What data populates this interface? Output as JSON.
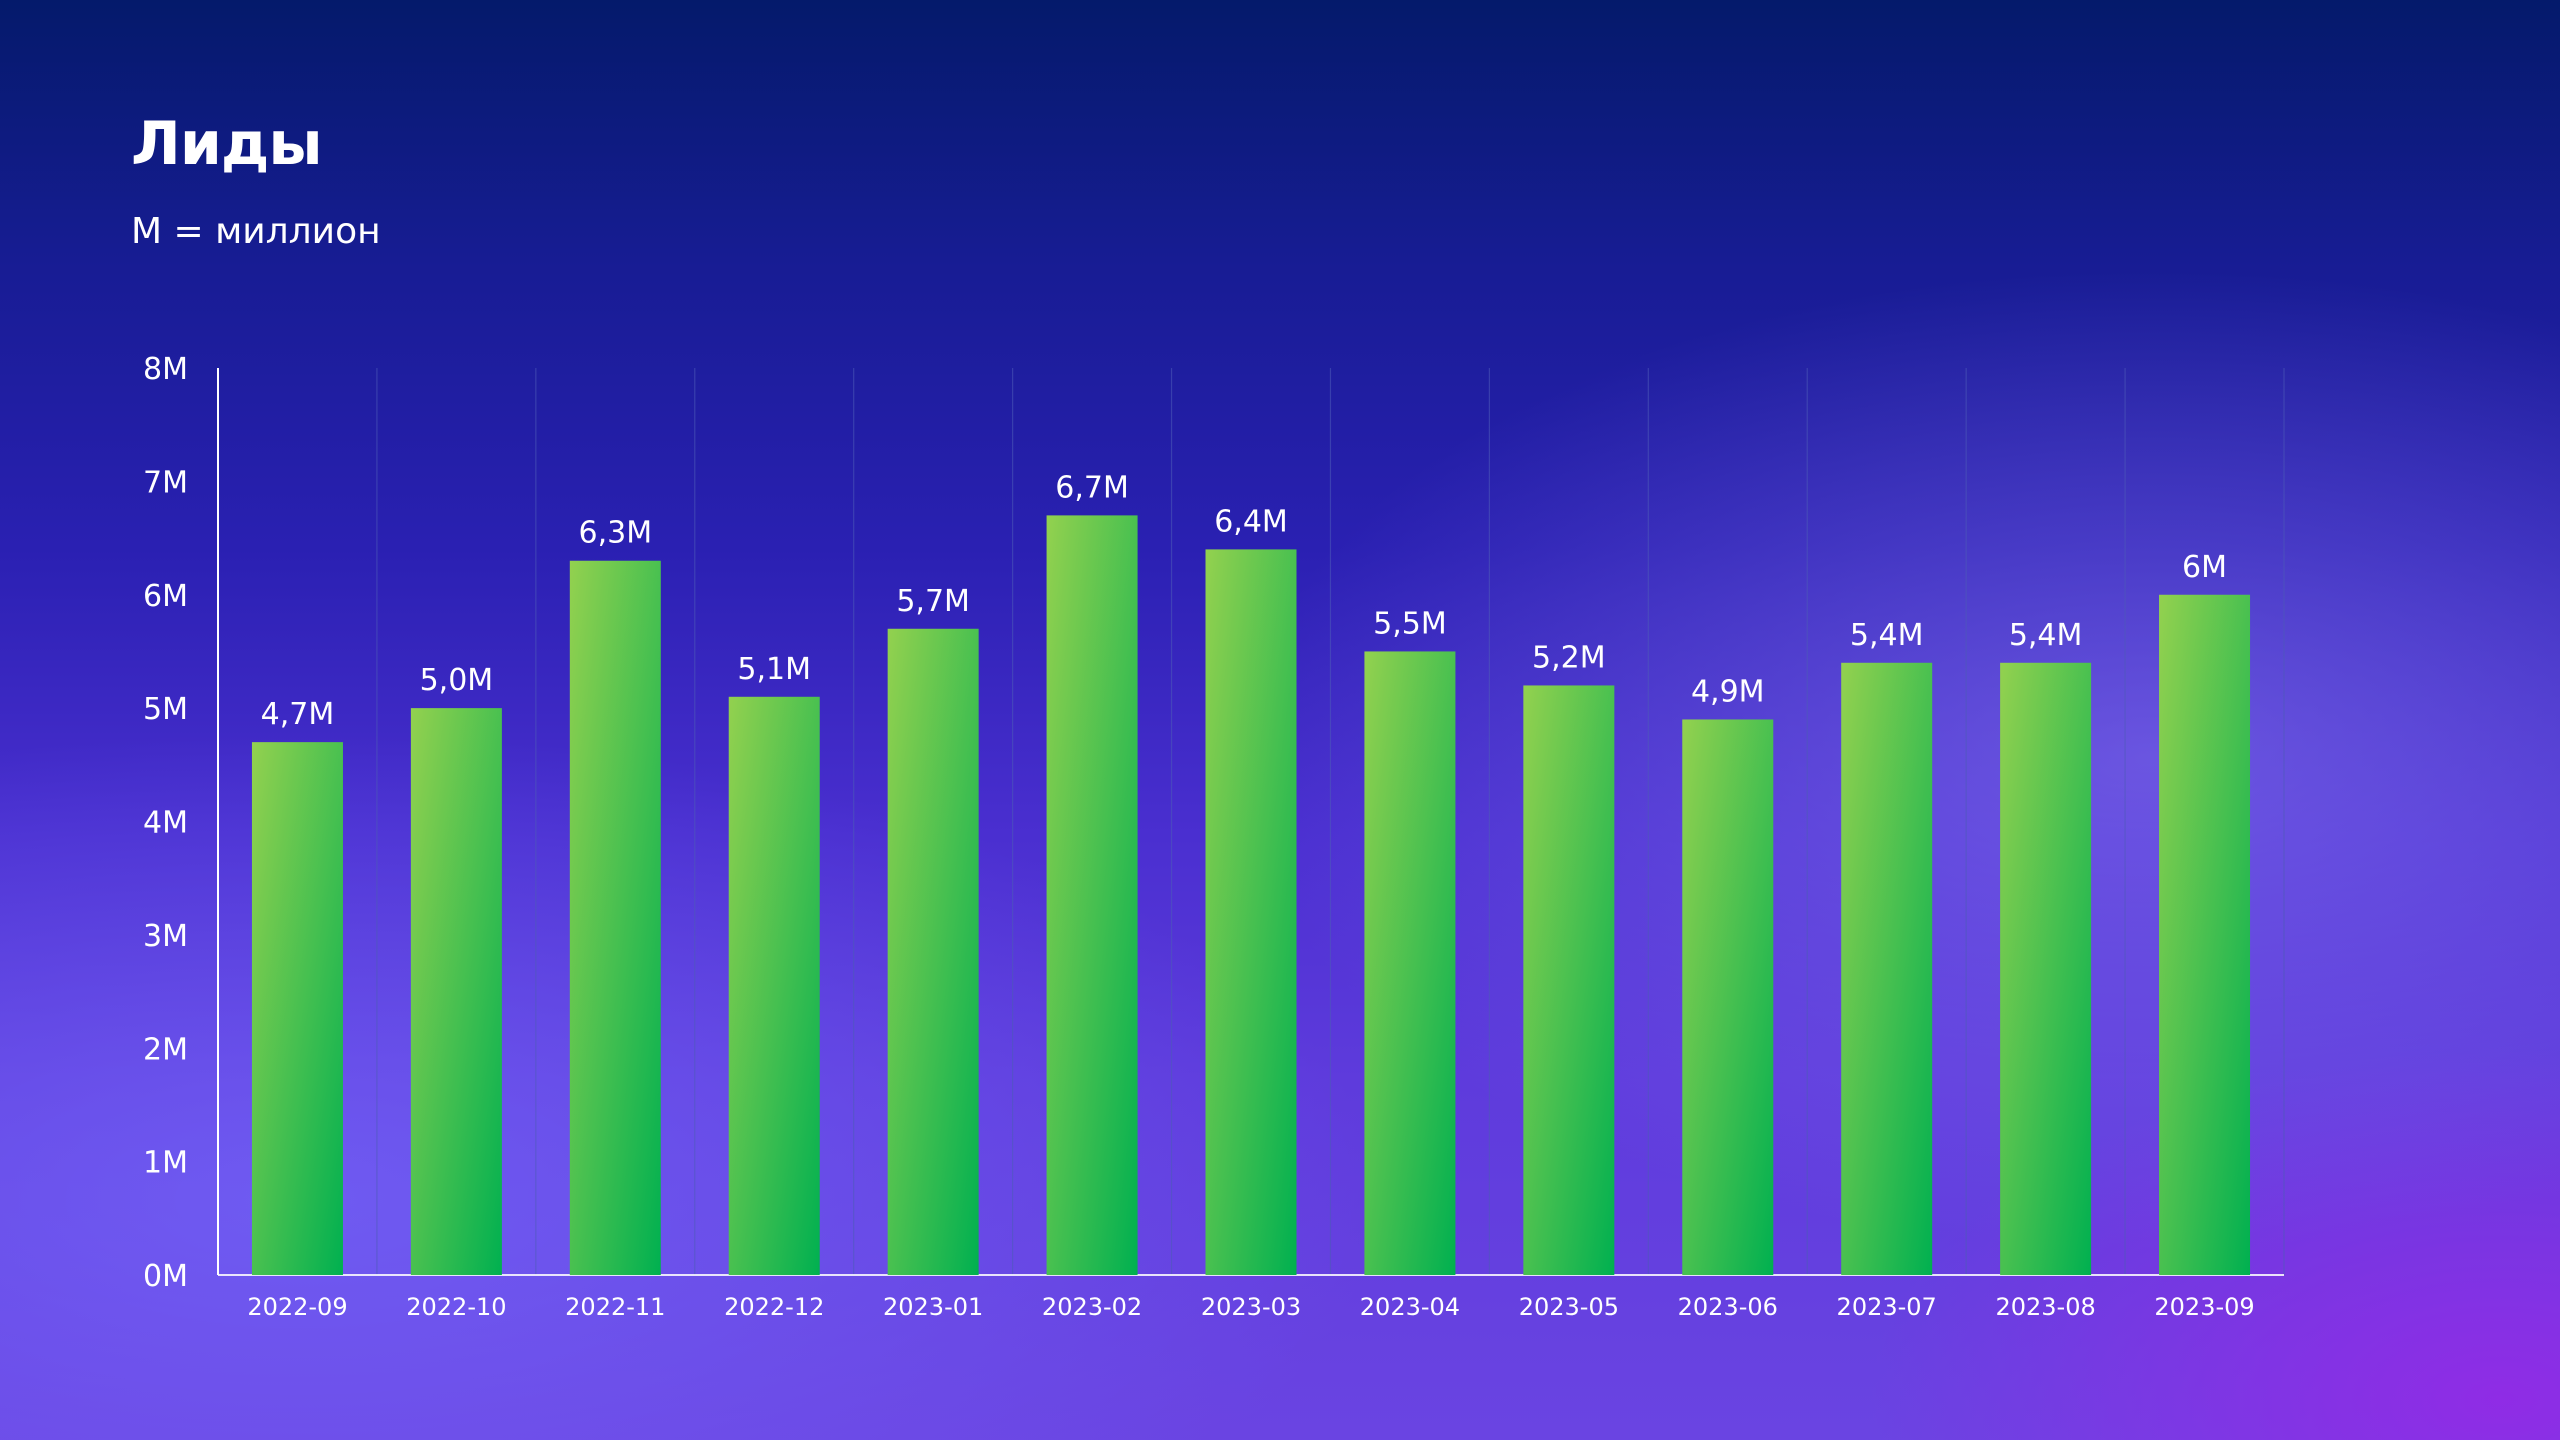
{
  "slide": {
    "title": "Лиды",
    "subtitle": "M = миллион"
  },
  "colors": {
    "bar_light": "#93d14f",
    "bar_dark": "#00b050",
    "axis": "#ffffff",
    "text": "#ffffff",
    "vertical_grid": "#4d5bb8"
  },
  "chart_data": {
    "type": "bar",
    "title": "Лиды",
    "subtitle": "M = миллион",
    "xlabel": "",
    "ylabel": "",
    "categories": [
      "2022-09",
      "2022-10",
      "2022-11",
      "2022-12",
      "2023-01",
      "2023-02",
      "2023-03",
      "2023-04",
      "2023-05",
      "2023-06",
      "2023-07",
      "2023-08",
      "2023-09"
    ],
    "values": [
      4.7,
      5.0,
      6.3,
      5.1,
      5.7,
      6.7,
      6.4,
      5.5,
      5.2,
      4.9,
      5.4,
      5.4,
      6.0
    ],
    "value_labels": [
      "4,7M",
      "5,0M",
      "6,3M",
      "5,1M",
      "5,7M",
      "6,7M",
      "6,4M",
      "5,5M",
      "5,2M",
      "4,9M",
      "5,4M",
      "5,4M",
      "6M"
    ],
    "unit": "M",
    "ylim": [
      0,
      8
    ],
    "yticks": [
      0,
      1,
      2,
      3,
      4,
      5,
      6,
      7,
      8
    ],
    "ytick_labels": [
      "0M",
      "1M",
      "2M",
      "3M",
      "4M",
      "5M",
      "6M",
      "7M",
      "8M"
    ],
    "grid": {
      "vertical": true,
      "horizontal": false
    },
    "legend": "none"
  }
}
